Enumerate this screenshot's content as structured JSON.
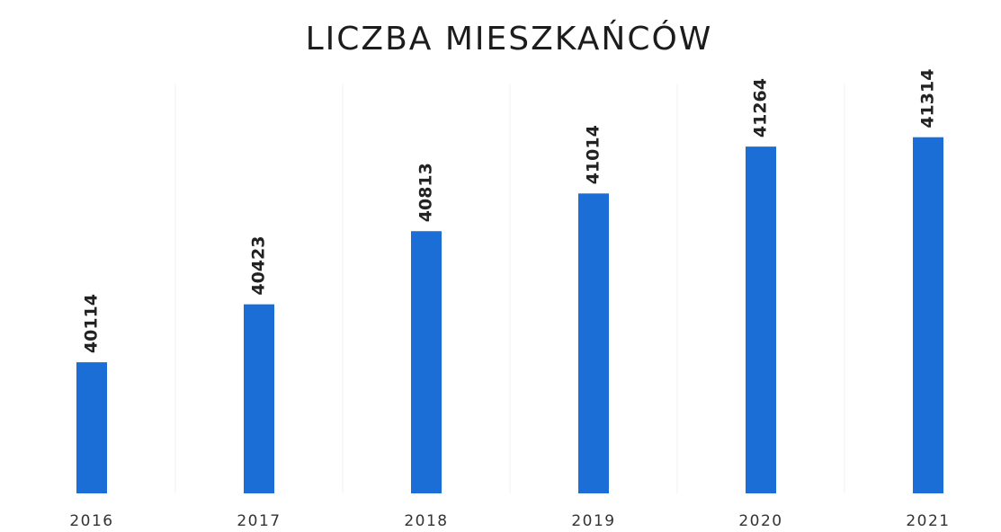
{
  "chart_data": {
    "type": "bar",
    "title": "LICZBA MIESZKAŃCÓW",
    "categories": [
      "2016",
      "2017",
      "2018",
      "2019",
      "2020",
      "2021"
    ],
    "values": [
      40114,
      40423,
      40813,
      41014,
      41264,
      41314
    ],
    "color": "#1a6ed6",
    "ylim": [
      39415,
      41600
    ],
    "grid": true
  }
}
